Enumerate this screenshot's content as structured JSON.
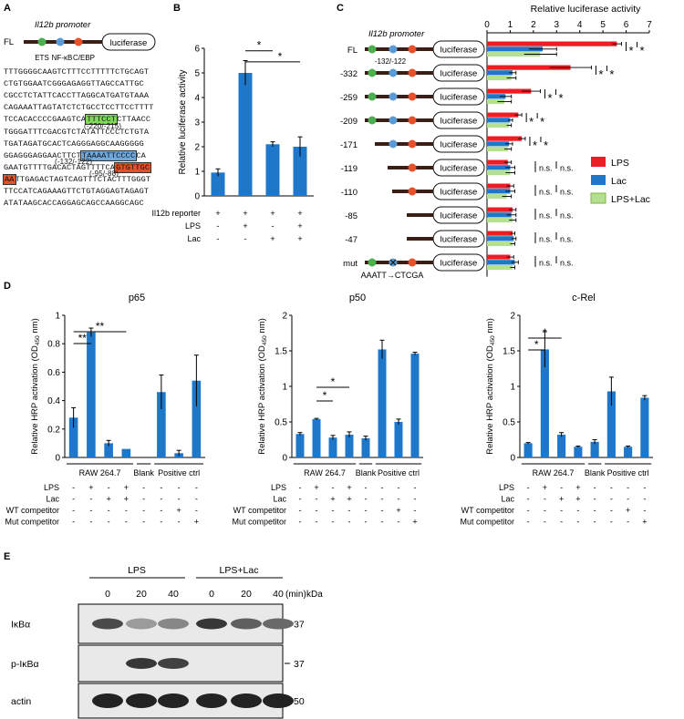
{
  "panel_a": {
    "letter": "A",
    "construct_label": "FL",
    "promoter_label": "Il12b promoter",
    "luciferase": "luciferase",
    "sites": [
      {
        "name": "ETS",
        "color": "#4caf50"
      },
      {
        "name": "NF-κB",
        "color": "#5b9bd5"
      },
      {
        "name": "C/EBP",
        "color": "#e8502a"
      }
    ],
    "highlight_colors": {
      "ets": "#7ed957",
      "nfkb": "#6fa8dc",
      "cebp": "#e0522a"
    },
    "sequence_lines": [
      {
        "parts": [
          {
            "t": "TTTGGGGCAAGTCTTTCCTTTTTCTGCAGT"
          }
        ]
      },
      {
        "parts": [
          {
            "t": "CTGTGGAATCGGGAGAGGTTAGCCATTGC"
          }
        ]
      },
      {
        "parts": [
          {
            "t": "CGCCTCTATTCACCTTAGGCATGATGTAAA"
          }
        ]
      },
      {
        "parts": [
          {
            "t": "CAGAAATTAGTATCTCTGCCTCCTTCCTTTT"
          }
        ]
      },
      {
        "parts": [
          {
            "t": "TCCACACCCCGAAGTCA"
          },
          {
            "t": "TTTCCT",
            "hl": "ets"
          },
          {
            "t": "CTTAACC"
          }
        ]
      },
      {
        "parts": [
          {
            "t": "TGGGATTTCGACGTCTATATTCCCTCTGTA"
          }
        ],
        "note": "(-220/-215)"
      },
      {
        "parts": [
          {
            "t": "TGATAGATGCACTCAGGGAGGCAAGGGGG"
          }
        ]
      },
      {
        "parts": [
          {
            "t": "GGAGGGAGGAACTTCT"
          },
          {
            "t": "TAAAATTCCCC",
            "hl": "nfkb"
          },
          {
            "t": "CA"
          }
        ]
      },
      {
        "parts": [
          {
            "t": "GAATGTTTTGACACTAGTTTTCA"
          },
          {
            "t": "GTGTTGC",
            "hl": "cebp"
          }
        ],
        "note": "(-132/-122)"
      },
      {
        "parts": [
          {
            "t": "AA",
            "hl": "cebp"
          },
          {
            "t": "TTGAGACTAGTCAGTTTCTACTTTGGGT"
          }
        ],
        "note": "(-95/-88)"
      },
      {
        "parts": [
          {
            "t": "TTCCATCAGAAAGTTCTGTAGGAGTAGAGT"
          }
        ]
      },
      {
        "parts": [
          {
            "t": "ATATAAGCACCAGGAGCAGCCAAGGCAGC"
          }
        ]
      }
    ]
  },
  "panel_b": {
    "letter": "B",
    "ylabel": "Relative luciferase activity",
    "row_labels": [
      "Il12b reporter",
      "LPS",
      "Lac"
    ],
    "signs": [
      [
        "+",
        "+",
        "+",
        "+"
      ],
      [
        "-",
        "+",
        "-",
        "+"
      ],
      [
        "-",
        "-",
        "+",
        "+"
      ]
    ],
    "sig": [
      "*",
      "*"
    ]
  },
  "panel_c": {
    "letter": "C",
    "title": "Relative luciferase activity",
    "promoter_label": "Il12b promoter",
    "position_label": "-132/-122",
    "mut_label": "AAATT→CTCGA",
    "luciferase": "luciferase",
    "constructs": [
      "FL",
      "-332",
      "-259",
      "-209",
      "-171",
      "-119",
      "-110",
      "-85",
      "-47",
      "mut"
    ],
    "sig_labels": [
      [
        "*",
        "*"
      ],
      [
        "*",
        "*"
      ],
      [
        "*",
        "*"
      ],
      [
        "*",
        "*"
      ],
      [
        "*",
        "*"
      ],
      [
        "n.s.",
        "n.s."
      ],
      [
        "n.s.",
        "n.s."
      ],
      [
        "n.s.",
        "n.s."
      ],
      [
        "n.s.",
        "n.s."
      ],
      [
        "n.s.",
        "n.s."
      ]
    ],
    "legend": [
      "LPS",
      "Lac",
      "LPS+Lac"
    ]
  },
  "panel_d": {
    "letter": "D",
    "ylabel": "Relative HRP activation (OD",
    "ylabel_sub": "450",
    "ylabel_end": " nm)",
    "group_labels": [
      "RAW 264.7",
      "Blank",
      "Positive ctrl"
    ],
    "row_labels": [
      "LPS",
      "Lac",
      "WT competitor",
      "Mut competitor"
    ],
    "signs": [
      [
        "-",
        "+",
        "-",
        "+",
        "-",
        "-",
        "-",
        "-"
      ],
      [
        "-",
        "-",
        "+",
        "+",
        "-",
        "-",
        "-",
        "-"
      ],
      [
        "-",
        "-",
        "-",
        "-",
        "-",
        "-",
        "+",
        "-"
      ],
      [
        "-",
        "-",
        "-",
        "-",
        "-",
        "-",
        "-",
        "+"
      ]
    ]
  },
  "panel_e": {
    "letter": "E",
    "group_labels": [
      "LPS",
      "LPS+Lac"
    ],
    "times": [
      "0",
      "20",
      "40",
      "0",
      "20",
      "40"
    ],
    "time_unit": "(min)",
    "kda": "kDa",
    "rows": [
      {
        "label": "IκBα",
        "marker": "37",
        "intensity": [
          0.75,
          0.35,
          0.45,
          0.85,
          0.65,
          0.6
        ]
      },
      {
        "label": "p-IκBα",
        "marker": "37",
        "intensity": [
          0.0,
          0.85,
          0.8,
          0.0,
          0.0,
          0.0
        ]
      },
      {
        "label": "actin",
        "marker": "50",
        "intensity": [
          0.95,
          0.95,
          0.95,
          0.95,
          0.95,
          0.95
        ]
      }
    ]
  },
  "chart_data": [
    {
      "type": "bar",
      "panel": "B",
      "ylabel": "Relative luciferase activity",
      "ylim": [
        0,
        6
      ],
      "yticks": [
        0,
        1,
        2,
        3,
        4,
        5,
        6
      ],
      "values": [
        0.95,
        5.0,
        2.1,
        2.0
      ],
      "errors": [
        0.15,
        0.5,
        0.1,
        0.4
      ],
      "color": "#1f77c9"
    },
    {
      "type": "bar",
      "panel": "C",
      "orientation": "horizontal",
      "title": "Relative luciferase activity",
      "xlim": [
        0,
        7
      ],
      "xticks": [
        0,
        1,
        2,
        3,
        4,
        5,
        6,
        7
      ],
      "categories": [
        "FL",
        "-332",
        "-259",
        "-209",
        "-171",
        "-119",
        "-110",
        "-85",
        "-47",
        "mut"
      ],
      "series": [
        {
          "name": "LPS",
          "color": "#ee1c25",
          "values": [
            5.6,
            3.6,
            1.9,
            1.35,
            1.5,
            0.9,
            1.0,
            1.1,
            1.1,
            1.0
          ],
          "errors": [
            0.2,
            0.9,
            0.4,
            0.15,
            0.15,
            0.15,
            0.15,
            0.15,
            0.1,
            0.15
          ]
        },
        {
          "name": "Lac",
          "color": "#1f77c9",
          "values": [
            2.4,
            1.1,
            0.8,
            1.0,
            0.95,
            1.0,
            1.0,
            1.05,
            1.15,
            1.2
          ],
          "errors": [
            0.6,
            0.15,
            0.25,
            0.1,
            0.15,
            0.2,
            0.2,
            0.2,
            0.1,
            0.15
          ]
        },
        {
          "name": "LPS+Lac",
          "color": "#b5e08f",
          "values": [
            2.3,
            1.05,
            0.75,
            0.95,
            0.9,
            1.0,
            0.85,
            1.1,
            1.1,
            1.1
          ],
          "errors": [
            0.7,
            0.2,
            0.3,
            0.1,
            0.15,
            0.2,
            0.2,
            0.15,
            0.1,
            0.1
          ]
        }
      ]
    },
    {
      "type": "bar",
      "panel": "D",
      "title": "p65",
      "ylim": [
        0,
        1
      ],
      "yticks": [
        0,
        0.2,
        0.4,
        0.6,
        0.8,
        1
      ],
      "ytick_labels": [
        "0",
        "0.2",
        "0.4",
        "0.6",
        "0.8",
        "1"
      ],
      "values": [
        0.28,
        0.88,
        0.1,
        0.06,
        0.0,
        0.46,
        0.03,
        0.54
      ],
      "errors": [
        0.07,
        0.03,
        0.02,
        0.0,
        0.0,
        0.12,
        0.02,
        0.18
      ],
      "sig": [
        {
          "from": 0,
          "to": 1,
          "label": "**",
          "level": 0
        },
        {
          "from": 0,
          "to": 3,
          "label": "**",
          "level": 1
        }
      ],
      "color": "#1f77c9"
    },
    {
      "type": "bar",
      "panel": "D",
      "title": "p50",
      "ylim": [
        0,
        2
      ],
      "yticks": [
        0,
        0.5,
        1,
        1.5,
        2
      ],
      "ytick_labels": [
        "0",
        "0.5",
        "1",
        "1.5",
        "2"
      ],
      "values": [
        0.33,
        0.54,
        0.28,
        0.32,
        0.27,
        1.52,
        0.5,
        1.46
      ],
      "errors": [
        0.02,
        0.01,
        0.03,
        0.04,
        0.03,
        0.13,
        0.04,
        0.02
      ],
      "sig": [
        {
          "from": 1,
          "to": 2,
          "label": "*",
          "level": 0
        },
        {
          "from": 1,
          "to": 3,
          "label": "*",
          "level": 1
        }
      ],
      "color": "#1f77c9"
    },
    {
      "type": "bar",
      "panel": "D",
      "title": "c-Rel",
      "ylim": [
        0,
        2
      ],
      "yticks": [
        0,
        0.5,
        1,
        1.5,
        2
      ],
      "ytick_labels": [
        "0",
        "0.5",
        "1",
        "1.5",
        "2"
      ],
      "values": [
        0.2,
        1.52,
        0.32,
        0.15,
        0.22,
        0.93,
        0.15,
        0.84
      ],
      "errors": [
        0.01,
        0.25,
        0.03,
        0.01,
        0.03,
        0.2,
        0.01,
        0.03
      ],
      "sig": [
        {
          "from": 0,
          "to": 1,
          "label": "*",
          "level": 0
        },
        {
          "from": 0,
          "to": 2,
          "label": "*",
          "level": 1
        }
      ],
      "color": "#1f77c9"
    }
  ]
}
